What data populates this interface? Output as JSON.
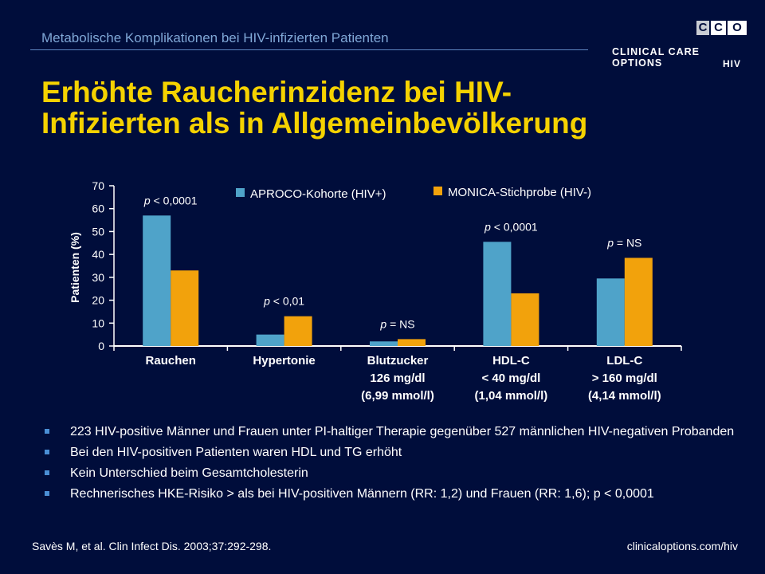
{
  "header": {
    "subtitle": "Metabolische Komplikationen bei HIV-infizierten Patienten",
    "logo": {
      "box_letters": [
        "C",
        "C",
        "O"
      ],
      "name": "CLINICAL CARE OPTIONS",
      "sub": "HIV"
    }
  },
  "title": {
    "line1": "Erhöhte Raucherinzidenz bei HIV-",
    "line2": "Infizierten als in Allgemeinbevölkerung"
  },
  "chart_data": {
    "type": "bar",
    "ylabel": "Patienten (%)",
    "ylim": [
      0,
      70
    ],
    "yticks": [
      0,
      10,
      20,
      30,
      40,
      50,
      60,
      70
    ],
    "grid": false,
    "legend_position": "top",
    "categories": [
      {
        "lines": [
          "Rauchen"
        ]
      },
      {
        "lines": [
          "Hypertonie"
        ]
      },
      {
        "lines": [
          "Blutzucker",
          "126 mg/dl",
          "(6,99 mmol/l)"
        ]
      },
      {
        "lines": [
          "HDL-C",
          "< 40 mg/dl",
          "(1,04 mmol/l)"
        ]
      },
      {
        "lines": [
          "LDL-C",
          "> 160 mg/dl",
          "(4,14 mmol/l)"
        ]
      }
    ],
    "series": [
      {
        "name": "APROCO-Kohorte (HIV+)",
        "color": "#4fa3c9",
        "values": [
          57,
          5,
          2,
          45.5,
          29.5
        ]
      },
      {
        "name": "MONICA-Stichprobe (HIV-)",
        "color": "#f2a20c",
        "values": [
          33,
          13,
          3,
          23,
          38.5
        ]
      }
    ],
    "annotations": [
      {
        "category": 0,
        "text": "p < 0,0001"
      },
      {
        "category": 1,
        "text": "p < 0,01"
      },
      {
        "category": 2,
        "text": "p = NS"
      },
      {
        "category": 3,
        "text": "p < 0,0001"
      },
      {
        "category": 4,
        "text": "p = NS"
      }
    ]
  },
  "bullets": [
    "223 HIV-positive Männer und Frauen unter PI-haltiger Therapie gegenüber 527 männlichen HIV-negativen Probanden",
    "Bei den HIV-positiven Patienten waren HDL und TG erhöht",
    "Kein Unterschied beim Gesamtcholesterin",
    "Rechnerisches HKE-Risiko > als bei HIV-positiven Männern (RR: 1,2) und Frauen (RR: 1,6); p < 0,0001"
  ],
  "footer": {
    "citation": "Savès M, et al. Clin Infect Dis. 2003;37:292-298.",
    "url": "clinicaloptions.com/hiv"
  }
}
